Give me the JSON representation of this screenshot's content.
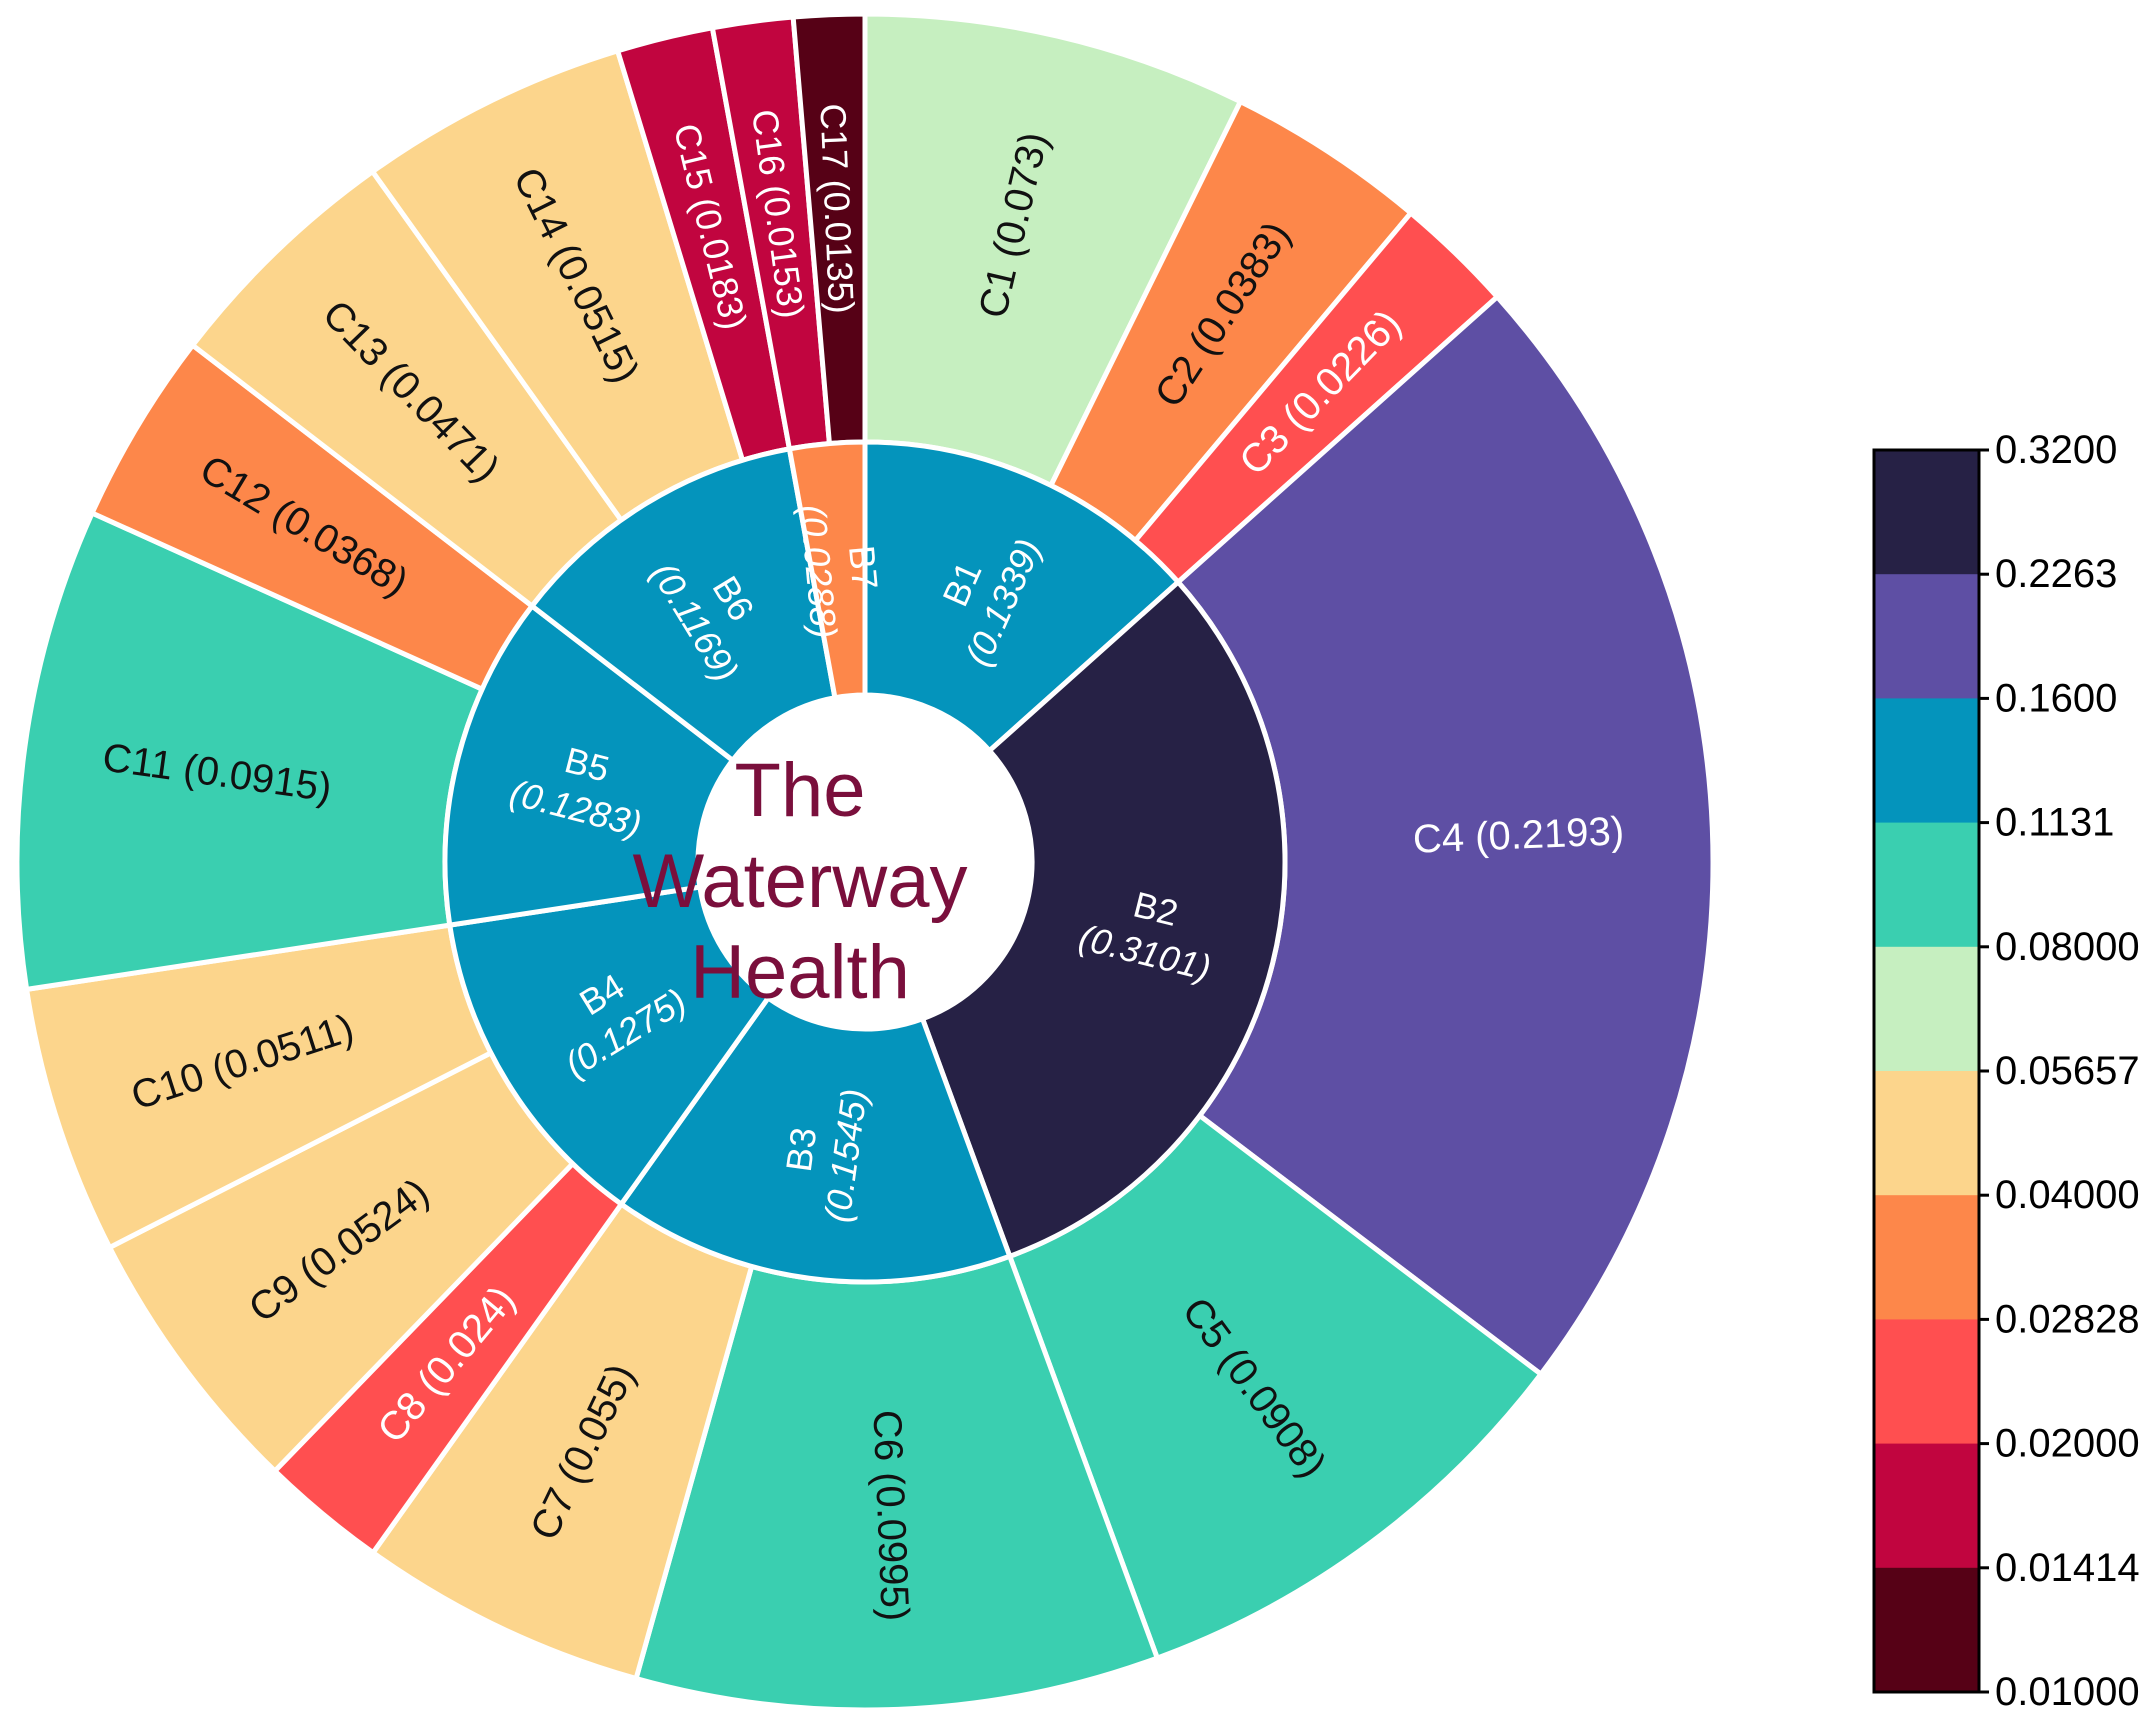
{
  "chart_data": {
    "type": "sunburst",
    "center_title": [
      "The",
      "Waterway",
      "Health"
    ],
    "inner_ring": [
      {
        "id": "B1",
        "label": "B1",
        "weight": "(0.1339)",
        "value": 0.1339
      },
      {
        "id": "B2",
        "label": "B2",
        "weight": "(0.3101)",
        "value": 0.3101
      },
      {
        "id": "B3",
        "label": "B3",
        "weight": "(0.1545)",
        "value": 0.1545
      },
      {
        "id": "B4",
        "label": "B4",
        "weight": "(0.1275)",
        "value": 0.1275
      },
      {
        "id": "B5",
        "label": "B5",
        "weight": "(0.1283)",
        "value": 0.1283
      },
      {
        "id": "B6",
        "label": "B6",
        "weight": "(0.1169)",
        "value": 0.1169
      },
      {
        "id": "B7",
        "label": "B7",
        "weight": "(0.0288)",
        "value": 0.0288
      }
    ],
    "outer_ring": [
      {
        "id": "C1",
        "label": "C1 (0.073)",
        "value": 0.073,
        "parent": "B1"
      },
      {
        "id": "C2",
        "label": "C2 (0.0383)",
        "value": 0.0383,
        "parent": "B1"
      },
      {
        "id": "C3",
        "label": "C3 (0.0226)",
        "value": 0.0226,
        "parent": "B1"
      },
      {
        "id": "C4",
        "label": "C4 (0.2193)",
        "value": 0.2193,
        "parent": "B2"
      },
      {
        "id": "C5",
        "label": "C5 (0.0908)",
        "value": 0.0908,
        "parent": "B2"
      },
      {
        "id": "C6",
        "label": "C6 (0.0995)",
        "value": 0.0995,
        "parent": "B3"
      },
      {
        "id": "C7",
        "label": "C7 (0.055)",
        "value": 0.055,
        "parent": "B3"
      },
      {
        "id": "C8",
        "label": "C8 (0.024)",
        "value": 0.024,
        "parent": "B4"
      },
      {
        "id": "C9",
        "label": "C9 (0.0524)",
        "value": 0.0524,
        "parent": "B4"
      },
      {
        "id": "C10",
        "label": "C10 (0.0511)",
        "value": 0.0511,
        "parent": "B4"
      },
      {
        "id": "C11",
        "label": "C11 (0.0915)",
        "value": 0.0915,
        "parent": "B5"
      },
      {
        "id": "C12",
        "label": "C12 (0.0368)",
        "value": 0.0368,
        "parent": "B5"
      },
      {
        "id": "C13",
        "label": "C13 (0.0471)",
        "value": 0.0471,
        "parent": "B6"
      },
      {
        "id": "C14",
        "label": "C14 (0.0515)",
        "value": 0.0515,
        "parent": "B6"
      },
      {
        "id": "C15",
        "label": "C15 (0.0183)",
        "value": 0.0183,
        "parent": "B6"
      },
      {
        "id": "C16",
        "label": "C16 (0.0153)",
        "value": 0.0153,
        "parent": "B7"
      },
      {
        "id": "C17",
        "label": "C17 (0.0135)",
        "value": 0.0135,
        "parent": "B7"
      }
    ],
    "colorbar": {
      "tick_labels": [
        "0.3200",
        "0.2263",
        "0.1600",
        "0.1131",
        "0.08000",
        "0.05657",
        "0.04000",
        "0.02828",
        "0.02000",
        "0.01414",
        "0.01000"
      ],
      "bands_top_to_bottom": [
        "#262145",
        "#5e4fa4",
        "#0494bc",
        "#3acfb0",
        "#c6efc0",
        "#fcd58c",
        "#fd874a",
        "#ff4f50",
        "#c1053f",
        "#560116"
      ],
      "scale": "log",
      "range": [
        0.01,
        0.32
      ],
      "placement": "right"
    }
  }
}
